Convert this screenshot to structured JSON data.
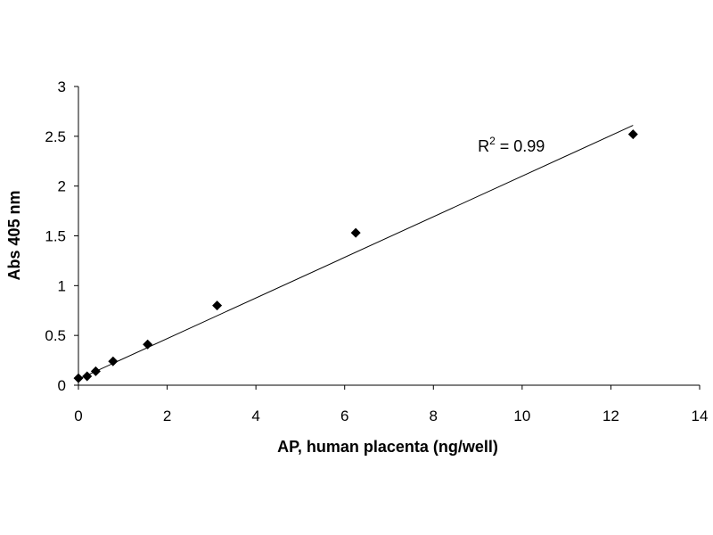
{
  "chart_data": {
    "type": "scatter",
    "title": "",
    "xlabel": "AP, human placenta (ng/well)",
    "ylabel": "Abs 405 nm",
    "xlim": [
      0,
      14
    ],
    "ylim": [
      0,
      3
    ],
    "x_ticks": [
      0,
      2,
      4,
      6,
      8,
      10,
      12,
      14
    ],
    "y_ticks": [
      0,
      0.5,
      1,
      1.5,
      2,
      2.5,
      3
    ],
    "grid": false,
    "legend": "none",
    "series": [
      {
        "x": [
          0,
          0.195,
          0.39,
          0.78,
          1.56,
          3.125,
          6.25,
          12.5
        ],
        "y": [
          0.07,
          0.09,
          0.14,
          0.24,
          0.41,
          0.8,
          1.53,
          2.52
        ],
        "marker": "diamond",
        "color": "#000000"
      }
    ],
    "trendline": {
      "type": "linear",
      "x_range": [
        0,
        12.5
      ],
      "y_at_start": 0.06,
      "y_at_end": 2.61,
      "color": "#000000"
    },
    "annotation": {
      "prefix": "R",
      "superscript": "2",
      "suffix": " = 0.99",
      "x": 9.0,
      "y": 2.4
    }
  }
}
